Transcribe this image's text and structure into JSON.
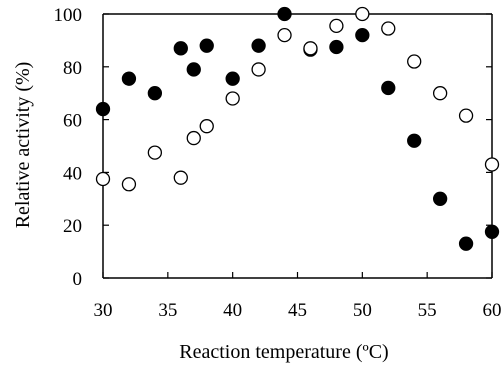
{
  "chart_data": {
    "type": "scatter",
    "title": "",
    "xlabel": "Reaction temperature (ºC)",
    "ylabel": "Relative activity (%)",
    "xlim": [
      30,
      60
    ],
    "ylim": [
      0,
      100
    ],
    "xticks": [
      "30",
      "35",
      "40",
      "45",
      "50",
      "55",
      "60"
    ],
    "yticks": [
      "0",
      "20",
      "40",
      "60",
      "80",
      "100"
    ],
    "grid": false,
    "legend": "none",
    "series": [
      {
        "marker": "filled-circle",
        "color": "#000000",
        "points": [
          [
            30,
            64
          ],
          [
            32,
            75.5
          ],
          [
            34,
            70
          ],
          [
            36,
            87
          ],
          [
            37,
            79
          ],
          [
            38,
            88
          ],
          [
            40,
            75.5
          ],
          [
            42,
            88
          ],
          [
            44,
            100
          ],
          [
            46,
            86.5
          ],
          [
            48,
            87.5
          ],
          [
            50,
            92
          ],
          [
            52,
            72
          ],
          [
            54,
            52
          ],
          [
            56,
            30
          ],
          [
            58,
            13
          ],
          [
            60,
            17.5
          ]
        ]
      },
      {
        "marker": "open-circle",
        "color": "#000000",
        "points": [
          [
            30,
            37.5
          ],
          [
            32,
            35.5
          ],
          [
            34,
            47.5
          ],
          [
            36,
            38
          ],
          [
            37,
            53
          ],
          [
            38,
            57.5
          ],
          [
            40,
            68
          ],
          [
            42,
            79
          ],
          [
            44,
            92
          ],
          [
            46,
            87
          ],
          [
            48,
            95.5
          ],
          [
            50,
            100
          ],
          [
            52,
            94.5
          ],
          [
            54,
            82
          ],
          [
            56,
            70
          ],
          [
            58,
            61.5
          ],
          [
            60,
            43
          ]
        ]
      }
    ]
  }
}
